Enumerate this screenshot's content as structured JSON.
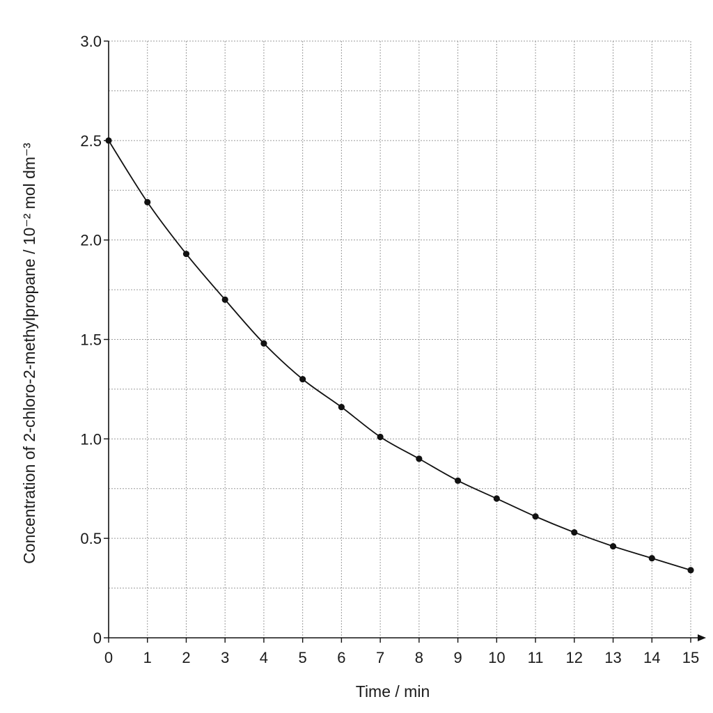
{
  "chart_data": {
    "type": "line",
    "xlabel": "Time / min",
    "ylabel": "Concentration of 2-chloro-2-methylpropane / 10⁻² mol dm⁻³",
    "xlim": [
      0,
      15
    ],
    "ylim": [
      0,
      3.0
    ],
    "grid": true,
    "x_ticks": [
      "0",
      "1",
      "2",
      "3",
      "4",
      "5",
      "6",
      "7",
      "8",
      "9",
      "10",
      "11",
      "12",
      "13",
      "14",
      "15"
    ],
    "y_ticks": [
      {
        "value": 0,
        "label": "0"
      },
      {
        "value": 0.5,
        "label": "0.5"
      },
      {
        "value": 1.0,
        "label": "1.0"
      },
      {
        "value": 1.5,
        "label": "1.5"
      },
      {
        "value": 2.0,
        "label": "2.0"
      },
      {
        "value": 2.5,
        "label": "2.5"
      },
      {
        "value": 3.0,
        "label": "3.0"
      }
    ],
    "series": [
      {
        "x": [
          0,
          1,
          2,
          3,
          4,
          5,
          6,
          7,
          8,
          9,
          10,
          11,
          12,
          13,
          14,
          15
        ],
        "values": [
          2.5,
          2.19,
          1.93,
          1.7,
          1.48,
          1.3,
          1.16,
          1.01,
          0.9,
          0.79,
          0.7,
          0.61,
          0.53,
          0.46,
          0.4,
          0.34
        ],
        "color": "#111111"
      }
    ]
  }
}
